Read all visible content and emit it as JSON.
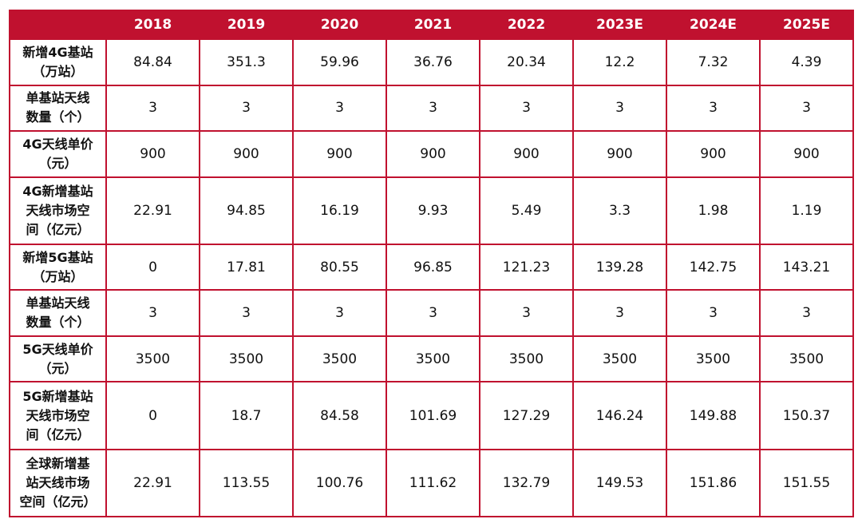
{
  "colors": {
    "header_bg": "#c0112f",
    "border": "#c0112f",
    "header_text": "#ffffff",
    "text": "#111111"
  },
  "header": {
    "corner": "",
    "years": [
      "2018",
      "2019",
      "2020",
      "2021",
      "2022",
      "2023E",
      "2024E",
      "2025E"
    ]
  },
  "rows": [
    {
      "label": [
        "新增4G基站",
        "（万站）"
      ],
      "values": [
        "84.84",
        "351.3",
        "59.96",
        "36.76",
        "20.34",
        "12.2",
        "7.32",
        "4.39"
      ]
    },
    {
      "label": [
        "单基站天线",
        "数量（个）"
      ],
      "values": [
        "3",
        "3",
        "3",
        "3",
        "3",
        "3",
        "3",
        "3"
      ]
    },
    {
      "label": [
        "4G天线单价",
        "（元）"
      ],
      "values": [
        "900",
        "900",
        "900",
        "900",
        "900",
        "900",
        "900",
        "900"
      ]
    },
    {
      "label": [
        "4G新增基站",
        "天线市场空",
        "间（亿元）"
      ],
      "values": [
        "22.91",
        "94.85",
        "16.19",
        "9.93",
        "5.49",
        "3.3",
        "1.98",
        "1.19"
      ]
    },
    {
      "label": [
        "新增5G基站",
        "（万站）"
      ],
      "values": [
        "0",
        "17.81",
        "80.55",
        "96.85",
        "121.23",
        "139.28",
        "142.75",
        "143.21"
      ]
    },
    {
      "label": [
        "单基站天线",
        "数量（个）"
      ],
      "values": [
        "3",
        "3",
        "3",
        "3",
        "3",
        "3",
        "3",
        "3"
      ]
    },
    {
      "label": [
        "5G天线单价",
        "（元）"
      ],
      "values": [
        "3500",
        "3500",
        "3500",
        "3500",
        "3500",
        "3500",
        "3500",
        "3500"
      ]
    },
    {
      "label": [
        "5G新增基站",
        "天线市场空",
        "间（亿元）"
      ],
      "values": [
        "0",
        "18.7",
        "84.58",
        "101.69",
        "127.29",
        "146.24",
        "149.88",
        "150.37"
      ]
    },
    {
      "label": [
        "全球新增基",
        "站天线市场",
        "空间（亿元）"
      ],
      "values": [
        "22.91",
        "113.55",
        "100.76",
        "111.62",
        "132.79",
        "149.53",
        "151.86",
        "151.55"
      ]
    }
  ]
}
